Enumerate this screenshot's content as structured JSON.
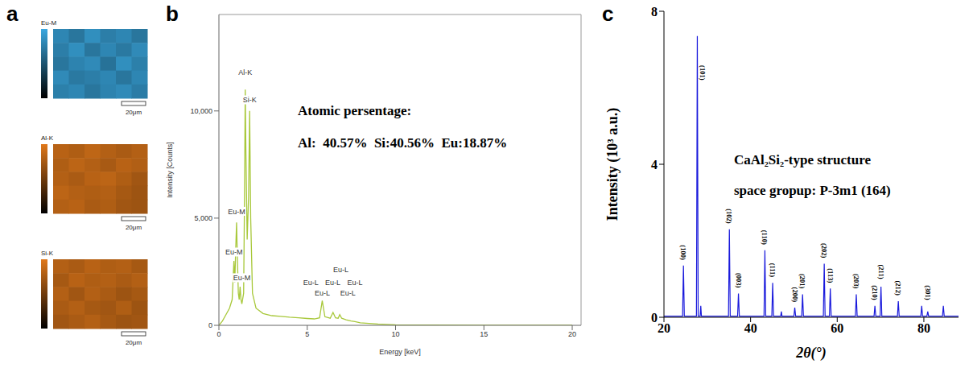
{
  "chart_data": [
    {
      "panel": "a",
      "type": "heatmap",
      "scale_bar": "20μm",
      "colorbar_range": [
        0,
        1
      ],
      "maps": [
        {
          "name": "Eu-M",
          "color": "#3aa8e0",
          "cells": [
            [
              0.8,
              0.7,
              0.85,
              0.75,
              0.8,
              0.7
            ],
            [
              0.75,
              0.85,
              0.7,
              0.8,
              0.72,
              0.82
            ],
            [
              0.7,
              0.78,
              0.82,
              0.68,
              0.85,
              0.76
            ],
            [
              0.82,
              0.72,
              0.75,
              0.8,
              0.7,
              0.8
            ],
            [
              0.76,
              0.8,
              0.7,
              0.78,
              0.82,
              0.74
            ]
          ]
        },
        {
          "name": "Al-K",
          "color": "#e0781a",
          "cells": [
            [
              0.82,
              0.78,
              0.85,
              0.8,
              0.76,
              0.8
            ],
            [
              0.78,
              0.84,
              0.8,
              0.75,
              0.82,
              0.79
            ],
            [
              0.8,
              0.76,
              0.82,
              0.84,
              0.78,
              0.72
            ],
            [
              0.84,
              0.8,
              0.78,
              0.8,
              0.74,
              0.7
            ],
            [
              0.8,
              0.82,
              0.76,
              0.78,
              0.72,
              0.7
            ]
          ]
        },
        {
          "name": "Si-K",
          "color": "#e0781a",
          "cells": [
            [
              0.8,
              0.76,
              0.82,
              0.78,
              0.8,
              0.74
            ],
            [
              0.74,
              0.82,
              0.78,
              0.8,
              0.76,
              0.8
            ],
            [
              0.8,
              0.72,
              0.8,
              0.76,
              0.7,
              0.74
            ],
            [
              0.76,
              0.8,
              0.74,
              0.72,
              0.78,
              0.7
            ],
            [
              0.72,
              0.76,
              0.8,
              0.74,
              0.7,
              0.72
            ]
          ]
        }
      ]
    },
    {
      "panel": "b",
      "type": "line",
      "xlabel": "Energy [keV]",
      "ylabel": "Intensity [Counts]",
      "color": "#a8c83a",
      "xlim": [
        0,
        20.5
      ],
      "xticks": [
        0,
        5,
        10,
        15,
        20
      ],
      "ylim": [
        0,
        14500
      ],
      "yticks": [
        0,
        {
          "value": 5000,
          "label": "5,000"
        },
        {
          "value": 10000,
          "label": "10,000"
        }
      ],
      "x": [
        0,
        0.2,
        0.4,
        0.6,
        0.75,
        0.85,
        0.9,
        0.95,
        1.0,
        1.05,
        1.1,
        1.15,
        1.2,
        1.25,
        1.3,
        1.4,
        1.45,
        1.49,
        1.53,
        1.6,
        1.68,
        1.74,
        1.8,
        1.9,
        2.1,
        2.5,
        3,
        3.5,
        4,
        4.5,
        5,
        5.4,
        5.7,
        5.85,
        6.0,
        6.3,
        6.46,
        6.6,
        6.75,
        6.84,
        6.95,
        7.2,
        7.48,
        7.7,
        8,
        9,
        10,
        12,
        15,
        20
      ],
      "values": [
        0,
        200,
        500,
        800,
        1200,
        3000,
        2000,
        3500,
        4800,
        3000,
        1500,
        1200,
        1800,
        1200,
        1000,
        1500,
        6000,
        11000,
        8000,
        4000,
        6000,
        10000,
        5000,
        1500,
        800,
        550,
        450,
        420,
        380,
        350,
        320,
        300,
        350,
        1150,
        400,
        330,
        600,
        350,
        330,
        500,
        330,
        260,
        200,
        170,
        120,
        60,
        20,
        10,
        5,
        0
      ],
      "annotations": [
        {
          "text": "Al-K",
          "x": 1.49,
          "y": 11800
        },
        {
          "text": "Si-K",
          "x": 1.74,
          "y": 10500
        },
        {
          "text": "Eu-M",
          "x": 1.0,
          "y": 5300
        },
        {
          "text": "Eu-M",
          "x": 0.85,
          "y": 3400
        },
        {
          "text": "Eu-M",
          "x": 1.3,
          "y": 2200
        },
        {
          "text": "Eu-L",
          "x": 6.9,
          "y": 2600
        },
        {
          "text": "Eu-L",
          "x": 5.2,
          "y": 2000
        },
        {
          "text": "Eu-L",
          "x": 6.45,
          "y": 2000
        },
        {
          "text": "Eu-L",
          "x": 7.7,
          "y": 2000
        },
        {
          "text": "Eu-L",
          "x": 5.85,
          "y": 1500
        },
        {
          "text": "Eu-L",
          "x": 7.3,
          "y": 1500
        }
      ],
      "text_box": [
        "Atomic persentage:",
        "Al:  40.57%  Si:40.56%  Eu:18.87%"
      ]
    },
    {
      "panel": "c",
      "type": "line",
      "xlabel": "2θ(°)",
      "ylabel": "Intensity (10³ a.u.)",
      "color": "#1a1adc",
      "title": "CaAl₂Si₂-type structure",
      "subtitle": "space gropup: P-3m1 (164)",
      "xlim": [
        20,
        88
      ],
      "xticks": [
        20,
        40,
        60,
        80
      ],
      "ylim": [
        0,
        8
      ],
      "yticks": [
        0,
        4,
        8
      ],
      "x": [
        20,
        24.3,
        24.5,
        24.7,
        27.5,
        27.7,
        27.9,
        28.35,
        28.5,
        28.65,
        34.9,
        35.1,
        35.3,
        37.0,
        37.2,
        37.4,
        43.1,
        43.3,
        43.5,
        44.9,
        45.1,
        45.3,
        46.95,
        47.1,
        47.25,
        50.0,
        50.2,
        50.4,
        51.8,
        52.0,
        52.2,
        56.8,
        57.0,
        57.2,
        58.2,
        58.4,
        58.6,
        64.2,
        64.4,
        64.6,
        68.5,
        68.7,
        68.9,
        69.9,
        70.1,
        70.3,
        73.9,
        74.1,
        74.3,
        79.3,
        79.5,
        79.7,
        80.7,
        80.9,
        81.1,
        84.3,
        84.5,
        84.7,
        88
      ],
      "values": [
        0.03,
        0.03,
        1.35,
        0.03,
        0.03,
        7.35,
        0.03,
        0.03,
        0.3,
        0.03,
        0.03,
        2.3,
        0.03,
        0.03,
        0.62,
        0.03,
        0.03,
        1.75,
        0.03,
        0.03,
        0.9,
        0.03,
        0.03,
        0.15,
        0.03,
        0.03,
        0.25,
        0.03,
        0.03,
        0.6,
        0.03,
        0.03,
        1.4,
        0.03,
        0.03,
        0.75,
        0.03,
        0.03,
        0.6,
        0.03,
        0.03,
        0.3,
        0.03,
        0.03,
        0.8,
        0.03,
        0.03,
        0.42,
        0.03,
        0.03,
        0.3,
        0.03,
        0.03,
        0.15,
        0.03,
        0.03,
        0.3,
        0.03,
        0.03
      ],
      "annotations": [
        {
          "text": "(100)",
          "x": 24.5,
          "y": 1.5
        },
        {
          "text": "(101)",
          "x": 29.0,
          "y": 6.2
        },
        {
          "text": "(102)",
          "x": 35.1,
          "y": 2.45
        },
        {
          "text": "(003)",
          "x": 37.2,
          "y": 0.77
        },
        {
          "text": "(110)",
          "x": 43.3,
          "y": 1.9
        },
        {
          "text": "(111)",
          "x": 45.1,
          "y": 1.05
        },
        {
          "text": "(200)",
          "x": 50.2,
          "y": 0.4
        },
        {
          "text": "(201)",
          "x": 52.0,
          "y": 0.75
        },
        {
          "text": "(202)",
          "x": 57.0,
          "y": 1.55
        },
        {
          "text": "(113)",
          "x": 58.4,
          "y": 0.9
        },
        {
          "text": "(203)",
          "x": 64.4,
          "y": 0.75
        },
        {
          "text": "(210)",
          "x": 68.7,
          "y": 0.45
        },
        {
          "text": "(211)",
          "x": 70.1,
          "y": 1.0
        },
        {
          "text": "(212)",
          "x": 74.1,
          "y": 0.57
        },
        {
          "text": "(301)",
          "x": 81.0,
          "y": 0.45
        }
      ]
    }
  ]
}
